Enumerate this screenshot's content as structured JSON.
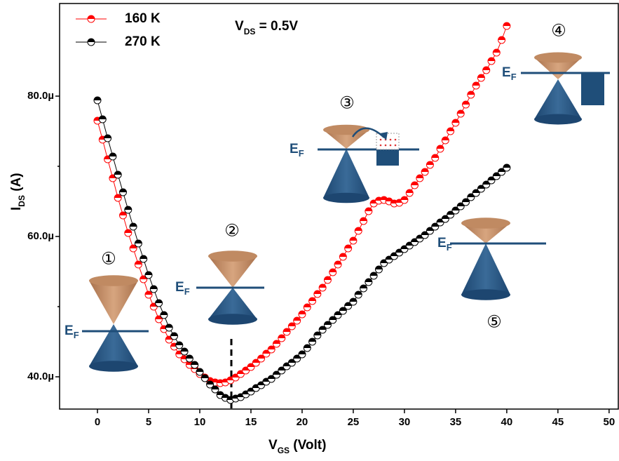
{
  "chart_data": {
    "type": "line",
    "annotation": {
      "main": "V",
      "sub": "DS",
      "rest": " = 0.5V"
    },
    "x_label": {
      "main": "V",
      "sub": "GS",
      "rest": " (Volt)"
    },
    "y_label": {
      "main": "I",
      "sub": "DS",
      "rest": " (A)"
    },
    "fermi_label": {
      "main": "E",
      "sub": "F"
    },
    "diagram_numbers": [
      "①",
      "②",
      "③",
      "④",
      "⑤"
    ],
    "xlim": [
      -3.7,
      50.9
    ],
    "ylim": [
      35.4,
      93.2
    ],
    "xticks": [
      0,
      5,
      10,
      15,
      20,
      25,
      30,
      35,
      40,
      45,
      50
    ],
    "yticks": [
      {
        "value": 40,
        "label": "40.0µ"
      },
      {
        "value": 60,
        "label": "60.0µ"
      },
      {
        "value": 80,
        "label": "80.0µ"
      }
    ],
    "yminorticks": [
      50,
      70
    ],
    "legend": "top-left",
    "x": [
      0,
      0.5,
      1,
      1.5,
      2,
      2.5,
      3,
      3.5,
      4,
      4.5,
      5,
      5.5,
      6,
      6.5,
      7,
      7.5,
      8,
      8.5,
      9,
      9.5,
      10,
      10.5,
      11,
      11.5,
      12,
      12.5,
      13,
      13.5,
      14,
      14.5,
      15,
      15.5,
      16,
      16.5,
      17,
      17.5,
      18,
      18.5,
      19,
      19.5,
      20,
      20.5,
      21,
      21.5,
      22,
      22.5,
      23,
      23.5,
      24,
      24.5,
      25,
      25.5,
      26,
      26.5,
      27,
      27.5,
      28,
      28.5,
      29,
      29.5,
      30,
      30.5,
      31,
      31.5,
      32,
      32.5,
      33,
      33.5,
      34,
      34.5,
      35,
      35.5,
      36,
      36.5,
      37,
      37.5,
      38,
      38.5,
      39,
      39.5,
      40
    ],
    "series": [
      {
        "name": "160 K",
        "color": "#ff0000",
        "values": [
          76.5,
          73.8,
          71,
          68.3,
          65.5,
          63,
          60.5,
          58.3,
          56,
          53.9,
          51.7,
          50,
          48.2,
          46.8,
          45.3,
          44.3,
          43.2,
          42.5,
          41.7,
          41.1,
          40.4,
          39.9,
          39.4,
          39.2,
          39.1,
          39.2,
          39.5,
          39.9,
          40.4,
          40.9,
          41.4,
          42,
          42.6,
          43.3,
          43.9,
          44.7,
          45.5,
          46.4,
          47.2,
          48,
          48.9,
          49.9,
          50.8,
          51.8,
          52.7,
          53.8,
          54.9,
          56,
          57.1,
          58.3,
          59.4,
          60.8,
          62.2,
          63.6,
          64.7,
          65.1,
          65.2,
          65,
          64.7,
          64.8,
          65.2,
          66.2,
          67.3,
          68.3,
          69.2,
          70.2,
          71.2,
          72.5,
          73.7,
          75,
          76.2,
          77.5,
          78.8,
          80.2,
          81.5,
          82.6,
          83.7,
          85,
          86.2,
          88,
          90
        ]
      },
      {
        "name": "270 K",
        "color": "#000000",
        "values": [
          79.4,
          76.7,
          74,
          71.4,
          68.8,
          66.3,
          63.8,
          61.4,
          59,
          56.8,
          54.5,
          52.5,
          50.5,
          48.8,
          47,
          45.8,
          44.5,
          43.6,
          42.6,
          41.7,
          40.7,
          39.8,
          38.9,
          38.2,
          37.4,
          37,
          36.7,
          36.9,
          37.1,
          37.5,
          37.9,
          38.4,
          38.8,
          39.3,
          39.7,
          40.3,
          40.9,
          41.5,
          42,
          42.6,
          43.2,
          44.1,
          45,
          45.9,
          46.7,
          47.4,
          48.1,
          48.8,
          49.4,
          50.1,
          50.7,
          51.7,
          52.6,
          53.5,
          54.4,
          55.3,
          56.2,
          56.7,
          57.2,
          57.7,
          58.2,
          58.7,
          59.2,
          59.7,
          60.2,
          60.8,
          61.4,
          62,
          62.5,
          63.1,
          63.7,
          64.3,
          64.9,
          65.6,
          66.2,
          66.8,
          67.4,
          68,
          68.6,
          69.2,
          69.8
        ]
      }
    ]
  }
}
